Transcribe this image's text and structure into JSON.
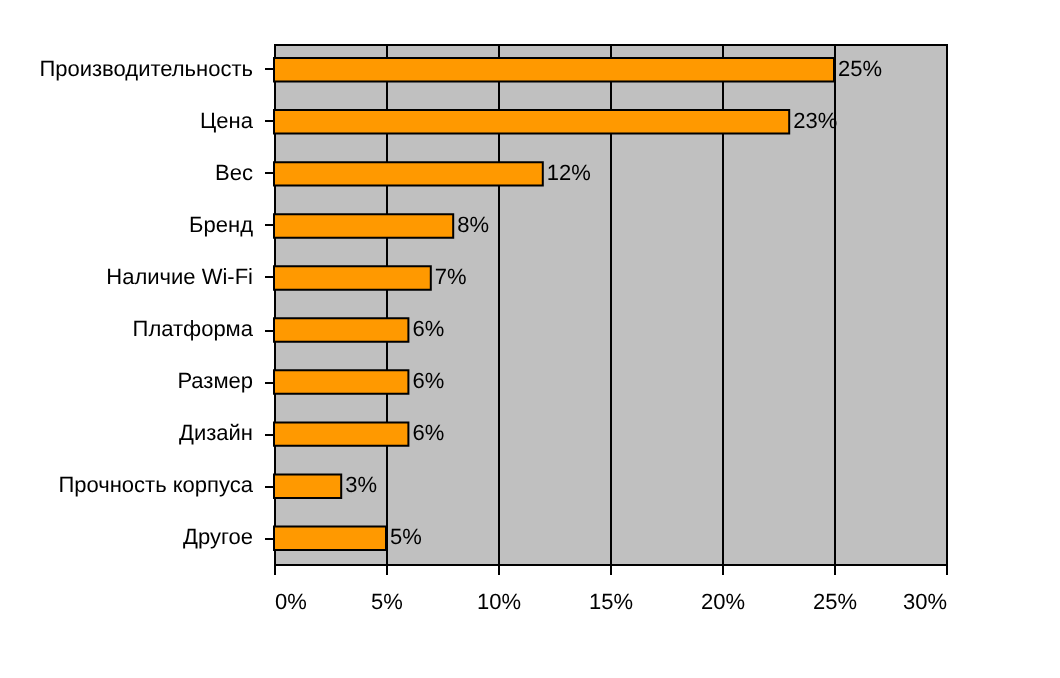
{
  "chart_data": {
    "type": "bar",
    "orientation": "horizontal",
    "categories": [
      "Производительность",
      "Цена",
      "Вес",
      "Бренд",
      "Наличие Wi-Fi",
      "Платформа",
      "Размер",
      "Дизайн",
      "Прочность корпуса",
      "Другое"
    ],
    "values": [
      25,
      23,
      12,
      8,
      7,
      6,
      6,
      6,
      3,
      5
    ],
    "color": "#ff9900",
    "value_labels": [
      "25%",
      "23%",
      "12%",
      "8%",
      "7%",
      "6%",
      "6%",
      "6%",
      "3%",
      "5%"
    ],
    "xlim": [
      0,
      30
    ],
    "xticks": [
      {
        "value": 0,
        "label": "0%"
      },
      {
        "value": 5,
        "label": "5%"
      },
      {
        "value": 10,
        "label": "10%"
      },
      {
        "value": 15,
        "label": "15%"
      },
      {
        "value": 20,
        "label": "20%"
      },
      {
        "value": 25,
        "label": "25%"
      },
      {
        "value": 30,
        "label": "30%"
      }
    ],
    "grid": "x"
  }
}
